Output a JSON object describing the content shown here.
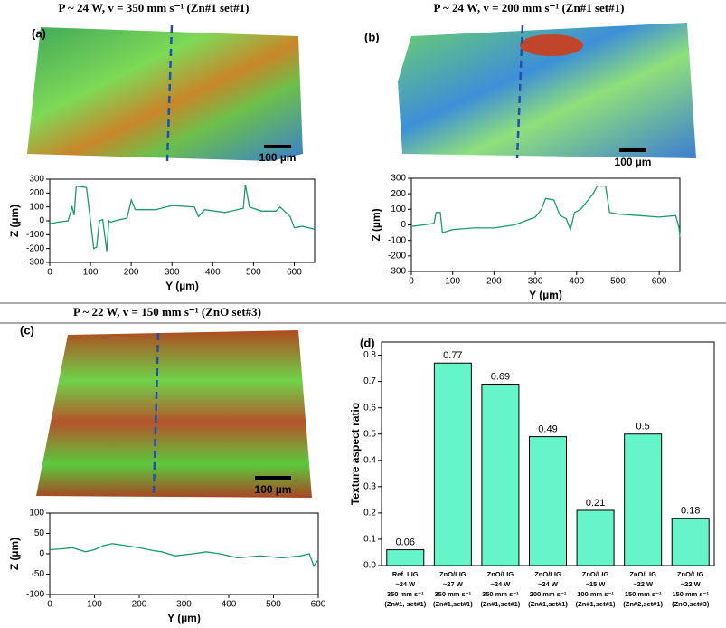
{
  "chart_data": [
    {
      "type": "line",
      "title": "P ~ 24 W, v = 350 mm s⁻¹ (Zn#1 set#1)",
      "panel_label": "(a)",
      "scale_label": "100 µm",
      "xlabel": "Y (µm)",
      "ylabel": "Z (µm)",
      "color": "#1a9b6a",
      "x": [
        0,
        20,
        45,
        55,
        60,
        65,
        90,
        100,
        108,
        115,
        122,
        130,
        140,
        145,
        150,
        160,
        190,
        200,
        210,
        260,
        300,
        355,
        365,
        380,
        430,
        475,
        480,
        490,
        520,
        555,
        565,
        590,
        600,
        620,
        650
      ],
      "values": [
        -20,
        -10,
        0,
        100,
        40,
        250,
        240,
        0,
        -200,
        -190,
        0,
        10,
        -220,
        0,
        -10,
        0,
        20,
        150,
        80,
        80,
        110,
        100,
        30,
        80,
        60,
        90,
        260,
        100,
        70,
        70,
        100,
        30,
        -50,
        -40,
        -60
      ],
      "xlim": [
        0,
        650
      ],
      "ylim": [
        -300,
        300
      ],
      "xticks": [
        0,
        100,
        200,
        300,
        400,
        500,
        600
      ],
      "yticks": [
        -300,
        -200,
        -100,
        0,
        100,
        200,
        300
      ]
    },
    {
      "type": "line",
      "title": "P ~ 24 W, v = 200 mm s⁻¹ (Zn#1 set#1)",
      "panel_label": "(b)",
      "scale_label": "100 µm",
      "xlabel": "Y (µm)",
      "ylabel": "Z (µm)",
      "color": "#1a9b6a",
      "x": [
        0,
        30,
        55,
        60,
        70,
        75,
        100,
        150,
        200,
        250,
        300,
        315,
        325,
        345,
        360,
        375,
        385,
        395,
        410,
        440,
        450,
        470,
        480,
        500,
        550,
        600,
        640,
        648,
        650
      ],
      "values": [
        -10,
        0,
        10,
        80,
        80,
        -50,
        -30,
        -20,
        -20,
        0,
        50,
        100,
        170,
        160,
        60,
        40,
        -30,
        80,
        100,
        200,
        250,
        250,
        80,
        70,
        60,
        50,
        60,
        -20,
        -80
      ],
      "xlim": [
        0,
        650
      ],
      "ylim": [
        -300,
        300
      ],
      "xticks": [
        0,
        100,
        200,
        300,
        400,
        500,
        600
      ],
      "yticks": [
        -300,
        -200,
        -100,
        0,
        100,
        200,
        300
      ]
    },
    {
      "type": "line",
      "title": "P ~ 22 W, v = 150 mm s⁻¹ (ZnO set#3)",
      "panel_label": "(c)",
      "scale_label": "100 µm",
      "xlabel": "Y (µm)",
      "ylabel": "Z (µm)",
      "color": "#1a9b6a",
      "x": [
        0,
        25,
        50,
        80,
        100,
        120,
        140,
        170,
        200,
        230,
        250,
        280,
        320,
        350,
        380,
        420,
        470,
        500,
        520,
        560,
        580,
        590,
        600
      ],
      "values": [
        10,
        12,
        15,
        5,
        10,
        20,
        25,
        20,
        15,
        8,
        5,
        -5,
        0,
        5,
        0,
        -10,
        -5,
        -8,
        -10,
        -5,
        0,
        -30,
        -15
      ],
      "xlim": [
        0,
        600
      ],
      "ylim": [
        -100,
        100
      ],
      "xticks": [
        0,
        100,
        200,
        300,
        400,
        500,
        600
      ],
      "yticks": [
        -100,
        -50,
        0,
        50,
        100
      ]
    },
    {
      "type": "bar",
      "panel_label": "(d)",
      "ylabel": "Texture aspect ratio",
      "color": "#66f5c8",
      "categories": [
        [
          "Ref. LIG",
          "~24 W",
          "350 mm s⁻¹",
          "(Zn#1, set#1)"
        ],
        [
          "ZnO/LIG",
          "~27 W",
          "350 mm s⁻¹",
          "(Zn#1,set#1)"
        ],
        [
          "ZnO/LIG",
          "~24 W",
          "350 mm s⁻¹",
          "(Zn#1,set#1)"
        ],
        [
          "ZnO/LIG",
          "~24 W",
          "200 mm s⁻¹",
          "(Zn#1,set#1)"
        ],
        [
          "ZnO/LIG",
          "~15 W",
          "100 mm s⁻¹",
          "(Zn#1,set#1)"
        ],
        [
          "ZnO/LIG",
          "~22 W",
          "150 mm s⁻¹",
          "(Zn#2,set#1)"
        ],
        [
          "ZnO/LIG",
          "~22 W",
          "150 mm s⁻¹",
          "(ZnO,set#3)"
        ]
      ],
      "values": [
        0.06,
        0.77,
        0.69,
        0.49,
        0.21,
        0.5,
        0.18
      ],
      "ylim": [
        0,
        0.85
      ],
      "yticks": [
        {
          "value": 0,
          "label": "0.0"
        },
        0.1,
        0.2,
        0.3,
        0.4,
        0.5,
        0.6,
        0.7,
        0.8
      ]
    }
  ]
}
